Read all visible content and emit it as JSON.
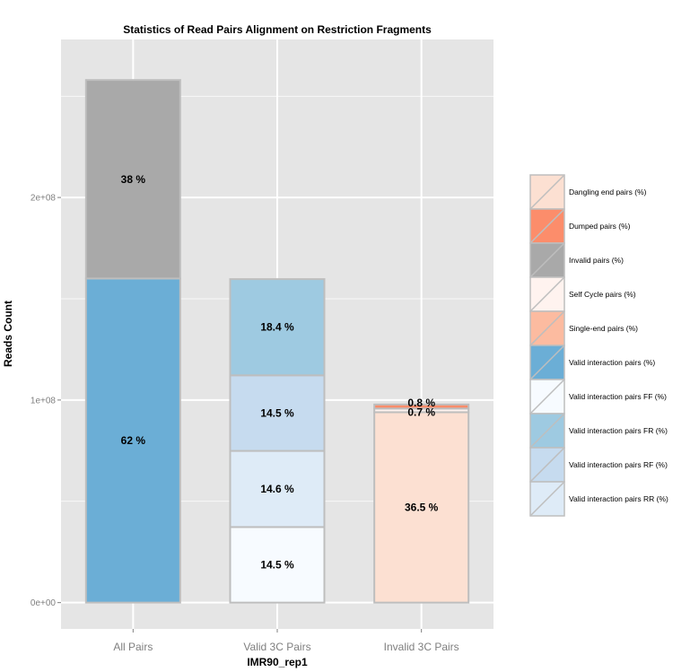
{
  "chart_data": {
    "type": "bar",
    "stacked": true,
    "title": "Statistics of Read Pairs Alignment on Restriction Fragments",
    "xlabel": "IMR90_rep1",
    "ylabel": "Reads Count",
    "ylim": [
      -13000000,
      278000000
    ],
    "yticks": [
      {
        "value": 0,
        "label": "0e+00"
      },
      {
        "value": 100000000,
        "label": "1e+08"
      },
      {
        "value": 200000000,
        "label": "2e+08"
      }
    ],
    "grid": true,
    "legend_position": "right",
    "categories": [
      "All Pairs",
      "Valid 3C Pairs",
      "Invalid 3C Pairs"
    ],
    "segments": [
      {
        "category": 0,
        "series": "Valid interaction pairs (%)",
        "value": 160000000,
        "label": "62 %"
      },
      {
        "category": 0,
        "series": "Invalid pairs (%)",
        "value": 98000000,
        "label": "38 %"
      },
      {
        "category": 1,
        "series": "Valid interaction pairs FF (%)",
        "value": 37300000,
        "label": "14.5 %"
      },
      {
        "category": 1,
        "series": "Valid interaction pairs RR (%)",
        "value": 37600000,
        "label": "14.6 %"
      },
      {
        "category": 1,
        "series": "Valid interaction pairs RF (%)",
        "value": 37300000,
        "label": "14.5 %"
      },
      {
        "category": 1,
        "series": "Valid interaction pairs FR (%)",
        "value": 47500000,
        "label": "18.4 %"
      },
      {
        "category": 2,
        "series": "Dangling end pairs (%)",
        "value": 94000000,
        "label": "36.5 %"
      },
      {
        "category": 2,
        "series": "Self Cycle pairs (%)",
        "value": 1800000,
        "label": "0.7 %"
      },
      {
        "category": 2,
        "series": "Dumped pairs (%)",
        "value": 2000000,
        "label": "0.8 %"
      }
    ],
    "legend": [
      {
        "name": "Dangling end pairs (%)",
        "color": "#FCE0D2"
      },
      {
        "name": "Dumped pairs (%)",
        "color": "#FC8D6B"
      },
      {
        "name": "Invalid pairs (%)",
        "color": "#A9A9A9"
      },
      {
        "name": "Self Cycle pairs (%)",
        "color": "#FFF3EF"
      },
      {
        "name": "Single-end pairs (%)",
        "color": "#FCBBA0"
      },
      {
        "name": "Valid interaction pairs (%)",
        "color": "#6BAED6"
      },
      {
        "name": "Valid interaction pairs FF (%)",
        "color": "#F7FBFF"
      },
      {
        "name": "Valid interaction pairs FR (%)",
        "color": "#9ECAE1"
      },
      {
        "name": "Valid interaction pairs RF (%)",
        "color": "#C6DBEF"
      },
      {
        "name": "Valid interaction pairs RR (%)",
        "color": "#DEEBF7"
      }
    ]
  }
}
